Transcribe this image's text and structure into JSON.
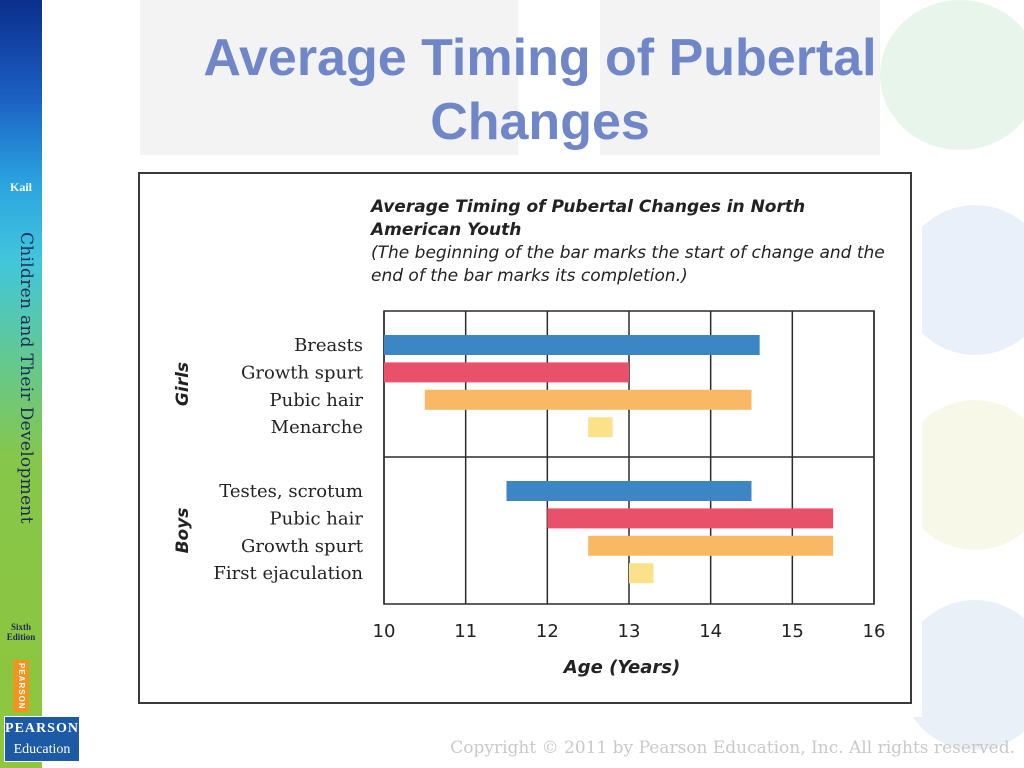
{
  "slide": {
    "title": "Average Timing of Pubertal Changes",
    "copyright": "Copyright © 2011 by Pearson Education, Inc. All rights reserved."
  },
  "spine": {
    "brand": "Kail",
    "book_title": "Children and Their Development",
    "edition": "Sixth Edition",
    "publisher_tab": "PEARSON",
    "logo_line1": "PEARSON",
    "logo_line2": "Education"
  },
  "colors": {
    "title": "#6f86c8",
    "blue": "#3d86c6",
    "red": "#e9506a",
    "orange": "#f9b864",
    "yellow": "#fbe28a"
  },
  "chart_data": {
    "type": "bar",
    "orientation": "horizontal-range",
    "title": "Average Timing of Pubertal Changes in North American Youth",
    "subtitle": "(The beginning of the bar marks the start of change and the end of the bar marks its completion.)",
    "xlabel": "Age (Years)",
    "xlim": [
      10,
      16
    ],
    "xticks": [
      10,
      11,
      12,
      13,
      14,
      15,
      16
    ],
    "grid": true,
    "groups": [
      {
        "name": "Girls",
        "rows": [
          {
            "label": "Breasts",
            "start": 10.0,
            "end": 14.6,
            "color": "#3d86c6"
          },
          {
            "label": "Growth spurt",
            "start": 10.0,
            "end": 13.0,
            "color": "#e9506a"
          },
          {
            "label": "Pubic hair",
            "start": 10.5,
            "end": 14.5,
            "color": "#f9b864"
          },
          {
            "label": "Menarche",
            "start": 12.5,
            "end": 12.8,
            "color": "#fbe28a"
          }
        ]
      },
      {
        "name": "Boys",
        "rows": [
          {
            "label": "Testes, scrotum",
            "start": 11.5,
            "end": 14.5,
            "color": "#3d86c6"
          },
          {
            "label": "Pubic hair",
            "start": 12.0,
            "end": 15.5,
            "color": "#e9506a"
          },
          {
            "label": "Growth spurt",
            "start": 12.5,
            "end": 15.5,
            "color": "#f9b864"
          },
          {
            "label": "First ejaculation",
            "start": 13.0,
            "end": 13.3,
            "color": "#fbe28a"
          }
        ]
      }
    ]
  }
}
